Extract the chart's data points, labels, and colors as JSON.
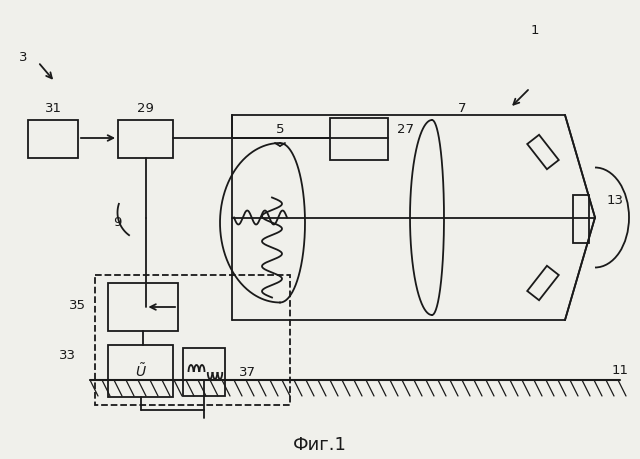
{
  "bg_color": "#f0f0eb",
  "line_color": "#1a1a1a",
  "title": "Фиг.1",
  "lw": 1.3,
  "label_fs": 9.5
}
